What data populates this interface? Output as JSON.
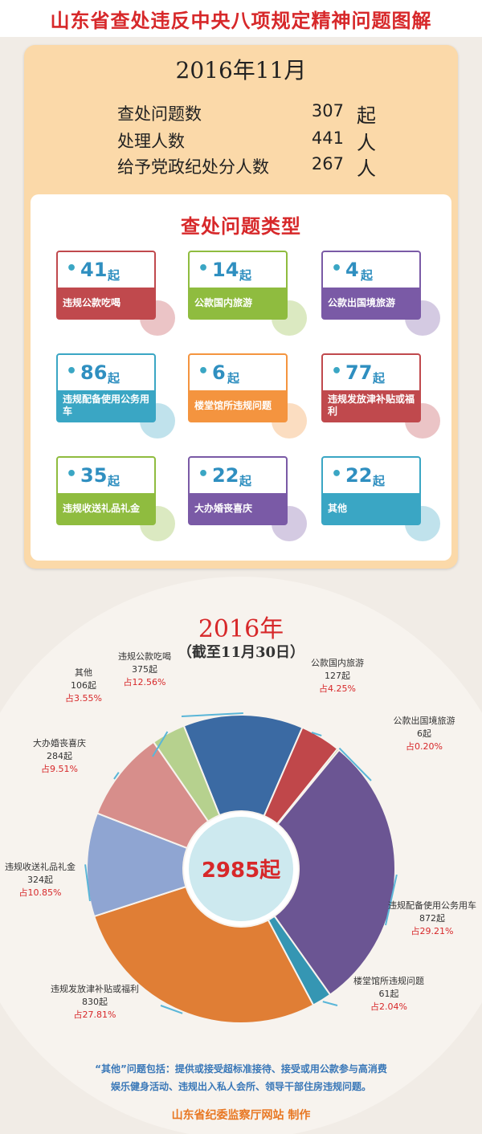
{
  "header": {
    "title": "山东省查处违反中央八项规定精神问题图解"
  },
  "month_section": {
    "month": "2016年11月",
    "stats": [
      {
        "label": "查处问题数",
        "value": "307",
        "unit": "起"
      },
      {
        "label": "处理人数",
        "value": "441",
        "unit": "人"
      },
      {
        "label": "给予党政纪处分人数",
        "value": "267",
        "unit": "人"
      }
    ],
    "types_title": "查处问题类型",
    "tiles": [
      {
        "number": "41",
        "unit": "起",
        "label": "违规公款吃喝",
        "color": "#c0494d"
      },
      {
        "number": "14",
        "unit": "起",
        "label": "公款国内旅游",
        "color": "#8fbc3f"
      },
      {
        "number": "4",
        "unit": "起",
        "label": "公款出国境旅游",
        "color": "#7a5aa6"
      },
      {
        "number": "86",
        "unit": "起",
        "label": "违规配备使用公务用车",
        "color": "#3aa6c4"
      },
      {
        "number": "6",
        "unit": "起",
        "label": "楼堂馆所违规问题",
        "color": "#f4943f"
      },
      {
        "number": "77",
        "unit": "起",
        "label": "违规发放津补贴或福利",
        "color": "#c0494d"
      },
      {
        "number": "35",
        "unit": "起",
        "label": "违规收送礼品礼金",
        "color": "#8fbc3f"
      },
      {
        "number": "22",
        "unit": "起",
        "label": "大办婚丧喜庆",
        "color": "#7a5aa6"
      },
      {
        "number": "22",
        "unit": "起",
        "label": "其他",
        "color": "#3aa6c4"
      }
    ]
  },
  "year_section": {
    "year": "2016年",
    "subtitle": "（截至11月30日）",
    "total": "2985起",
    "note_line1": "“其他”问题包括：提供或接受超标准接待、接受或用公款参与高消费",
    "note_line2": "娱乐健身活动、违规出入私人会所、领导干部住房违规问题。",
    "credit": "山东省纪委监察厅网站  制作"
  },
  "chart_data": {
    "type": "pie",
    "donut": true,
    "center_label": "2985起",
    "slices": [
      {
        "name": "违规公款吃喝",
        "value": 375,
        "percent": "占12.56%",
        "color": "#3b6aa3"
      },
      {
        "name": "公款国内旅游",
        "value": 127,
        "percent": "占4.25%",
        "color": "#c0474a"
      },
      {
        "name": "公款出国境旅游",
        "value": 6,
        "percent": "占0.20%",
        "color": "#8ab043"
      },
      {
        "name": "违规配备使用公务用车",
        "value": 872,
        "percent": "占29.21%",
        "color": "#6b5593"
      },
      {
        "name": "楼堂馆所违规问题",
        "value": 61,
        "percent": "占2.04%",
        "color": "#3596b3"
      },
      {
        "name": "违规发放津补贴或福利",
        "value": 830,
        "percent": "占27.81%",
        "color": "#e07e35"
      },
      {
        "name": "违规收送礼品礼金",
        "value": 324,
        "percent": "占10.85%",
        "color": "#8fa5d2"
      },
      {
        "name": "大办婚丧喜庆",
        "value": 284,
        "percent": "占9.51%",
        "color": "#d78e8b"
      },
      {
        "name": "其他",
        "value": 106,
        "percent": "占3.55%",
        "color": "#b6d18e"
      }
    ],
    "labels": [
      {
        "name": "违规公款吃喝",
        "count": "375起",
        "pct": "占12.56%"
      },
      {
        "name": "公款国内旅游",
        "count": "127起",
        "pct": "占4.25%"
      },
      {
        "name": "公款出国境旅游",
        "count": "6起",
        "pct": "占0.20%"
      },
      {
        "name": "违规配备使用公务用车",
        "count": "872起",
        "pct": "占29.21%"
      },
      {
        "name": "楼堂馆所违规问题",
        "count": "61起",
        "pct": "占2.04%"
      },
      {
        "name": "违规发放津补贴或福利",
        "count": "830起",
        "pct": "占27.81%"
      },
      {
        "name": "违规收送礼品礼金",
        "count": "324起",
        "pct": "占10.85%"
      },
      {
        "name": "大办婚丧喜庆",
        "count": "284起",
        "pct": "占9.51%"
      },
      {
        "name": "其他",
        "count": "106起",
        "pct": "占3.55%"
      }
    ]
  }
}
